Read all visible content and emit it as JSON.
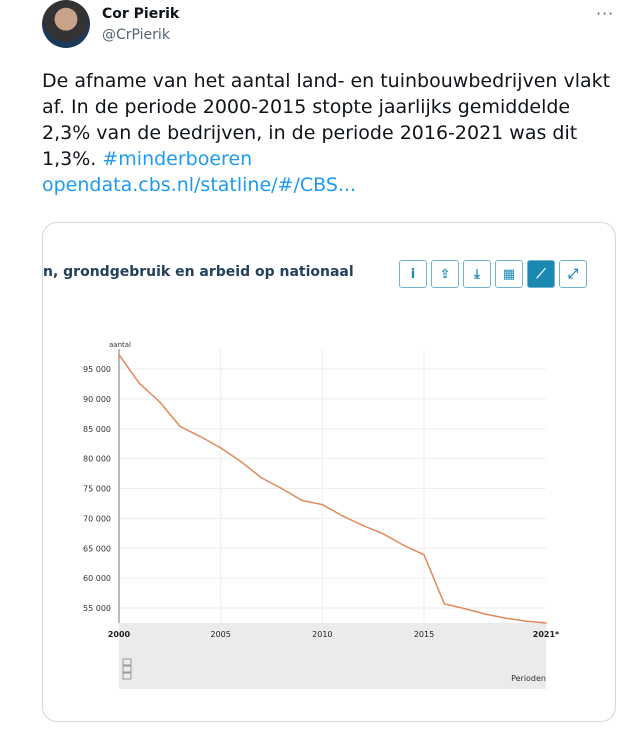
{
  "author": {
    "name": "Cor Pierik",
    "handle": "@CrPierik",
    "more": "···"
  },
  "tweet": {
    "text": "De afname van het aantal land- en tuinbouwbedrijven vlakt af. In de periode 2000-2015 stopte jaarlijks gemiddelde 2,3% van de bedrijven, in de periode 2016-2021 was dit 1,3%. ",
    "hashtag": "#minderboeren",
    "link": "opendata.cbs.nl/statline/#/CBS..."
  },
  "card": {
    "title": "n, grondgebruik en arbeid op nationaal",
    "tools": [
      {
        "icon": "info-icon",
        "g": "i"
      },
      {
        "icon": "share-icon",
        "g": "⇪"
      },
      {
        "icon": "download-icon",
        "g": "⤓"
      },
      {
        "icon": "table-icon",
        "g": "▦"
      },
      {
        "icon": "line-chart-icon",
        "g": "⟋",
        "active": true
      },
      {
        "icon": "expand-icon",
        "g": "⤢"
      }
    ],
    "logo": "cbs"
  },
  "colors": {
    "line": "#e08a5a",
    "accent": "#1a88b0",
    "link": "#1d9bf0"
  },
  "chart_data": {
    "type": "line",
    "ylabel": "aantal",
    "xlabel": "Perioden",
    "x": [
      2000,
      2001,
      2002,
      2003,
      2004,
      2005,
      2006,
      2007,
      2008,
      2009,
      2010,
      2011,
      2012,
      2013,
      2014,
      2015,
      2016,
      2017,
      2018,
      2019,
      2020,
      2021
    ],
    "values": [
      97400,
      92600,
      89500,
      85400,
      83700,
      81800,
      79500,
      76800,
      75000,
      73000,
      72300,
      70400,
      68800,
      67400,
      65500,
      63900,
      55700,
      54900,
      54000,
      53300,
      52800,
      52200
    ],
    "xticks": [
      "2000",
      "2005",
      "2010",
      "2015",
      "2021*"
    ],
    "yticks": [
      "55 000",
      "60 000",
      "65 000",
      "70 000",
      "75 000",
      "80 000",
      "85 000",
      "90 000",
      "95 000"
    ],
    "ylim": [
      52200,
      97500
    ],
    "grid": true
  }
}
